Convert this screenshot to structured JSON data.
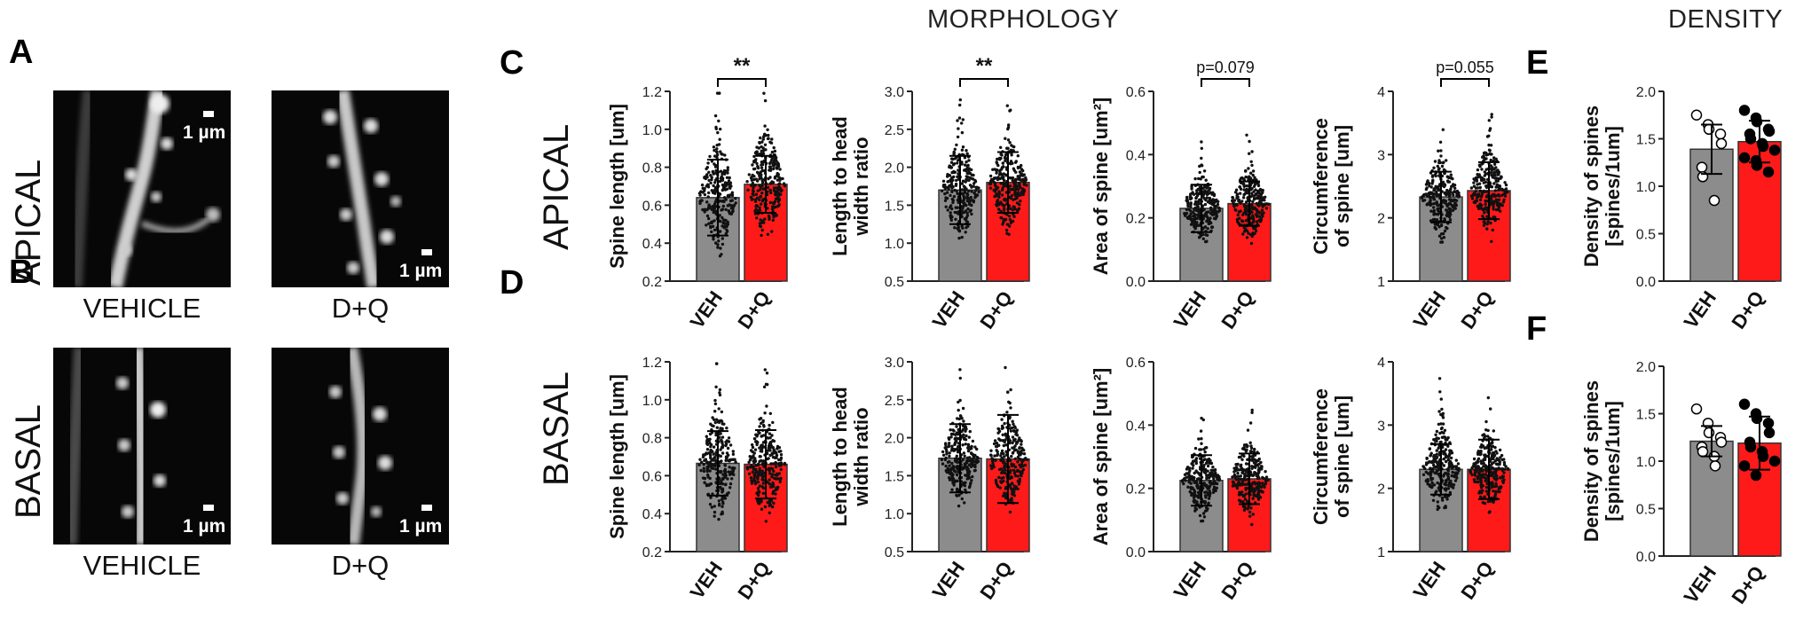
{
  "panel_letters": {
    "A": "A",
    "B": "B",
    "C": "C",
    "D": "D",
    "E": "E",
    "F": "F"
  },
  "section_titles": {
    "morphology": "MORPHOLOGY",
    "density": "DENSITY"
  },
  "row_labels": {
    "left_apical": "APICAL",
    "left_basal": "BASAL",
    "mid_apical": "APICAL",
    "mid_basal": "BASAL"
  },
  "image_captions": {
    "apical_vehicle": "VEHICLE",
    "apical_dq": "D+Q",
    "basal_vehicle": "VEHICLE",
    "basal_dq": "D+Q"
  },
  "scale_bar_label": "1 µm",
  "colors": {
    "vehicle": "#8c8c8c",
    "dq": "#ff1a1a",
    "points": "#111111",
    "axis": "#222222"
  },
  "chart_data": [
    {
      "id": "C1",
      "type": "bar",
      "panel": "C",
      "categories": [
        "VEH",
        "D+Q"
      ],
      "values": [
        0.64,
        0.71
      ],
      "error": [
        0.2,
        0.15
      ],
      "ylabel": "Spine length [um]",
      "ylim": [
        0.2,
        1.2
      ],
      "yticks": [
        "0.2",
        "0.4",
        "0.6",
        "0.8",
        "1.0",
        "1.2"
      ],
      "annotation": "**",
      "annotation_type": "stars",
      "points": "swarm",
      "point_spread": 0.23
    },
    {
      "id": "C2",
      "type": "bar",
      "panel": "C",
      "categories": [
        "VEH",
        "D+Q"
      ],
      "values": [
        1.7,
        1.8
      ],
      "error": [
        0.45,
        0.4
      ],
      "ylabel": "Length to head|width ratio",
      "ylim": [
        0.5,
        3.0
      ],
      "yticks": [
        "0.5",
        "1.0",
        "1.5",
        "2.0",
        "2.5",
        "3.0"
      ],
      "annotation": "**",
      "annotation_type": "stars",
      "points": "swarm",
      "point_spread": 0.5
    },
    {
      "id": "C3",
      "type": "bar",
      "panel": "C",
      "categories": [
        "VEH",
        "D+Q"
      ],
      "values": [
        0.23,
        0.245
      ],
      "error": [
        0.075,
        0.07
      ],
      "ylabel": "Area of spine [um²]",
      "ylim": [
        0.0,
        0.6
      ],
      "yticks": [
        "0.0",
        "0.2",
        "0.4",
        "0.6"
      ],
      "annotation": "p=0.079",
      "annotation_type": "p",
      "points": "swarm",
      "point_spread": 0.09
    },
    {
      "id": "C4",
      "type": "bar",
      "panel": "C",
      "categories": [
        "VEH",
        "D+Q"
      ],
      "values": [
        2.33,
        2.43
      ],
      "error": [
        0.4,
        0.45
      ],
      "ylabel": "Circumference|of spine [um]",
      "ylim": [
        1,
        4
      ],
      "yticks": [
        "1",
        "2",
        "3",
        "4"
      ],
      "annotation": "p=0.055",
      "annotation_type": "p",
      "points": "swarm",
      "point_spread": 0.5
    },
    {
      "id": "D1",
      "type": "bar",
      "panel": "D",
      "categories": [
        "VEH",
        "D+Q"
      ],
      "values": [
        0.665,
        0.66
      ],
      "error": [
        0.17,
        0.18
      ],
      "ylabel": "Spine length [um]",
      "ylim": [
        0.2,
        1.2
      ],
      "yticks": [
        "0.2",
        "0.4",
        "0.6",
        "0.8",
        "1.0",
        "1.2"
      ],
      "annotation": "",
      "annotation_type": "none",
      "points": "swarm",
      "point_spread": 0.22
    },
    {
      "id": "D2",
      "type": "bar",
      "panel": "D",
      "categories": [
        "VEH",
        "D+Q"
      ],
      "values": [
        1.73,
        1.72
      ],
      "error": [
        0.45,
        0.58
      ],
      "ylabel": "Length to head|width ratio",
      "ylim": [
        0.5,
        3.0
      ],
      "yticks": [
        "0.5",
        "1.0",
        "1.5",
        "2.0",
        "2.5",
        "3.0"
      ],
      "annotation": "",
      "annotation_type": "none",
      "points": "swarm",
      "point_spread": 0.5
    },
    {
      "id": "D3",
      "type": "bar",
      "panel": "D",
      "categories": [
        "VEH",
        "D+Q"
      ],
      "values": [
        0.225,
        0.23
      ],
      "error": [
        0.08,
        0.08
      ],
      "ylabel": "Area of spine [um²]",
      "ylim": [
        0.0,
        0.6
      ],
      "yticks": [
        "0.0",
        "0.2",
        "0.4",
        "0.6"
      ],
      "annotation": "",
      "annotation_type": "none",
      "points": "swarm",
      "point_spread": 0.09
    },
    {
      "id": "D4",
      "type": "bar",
      "panel": "D",
      "categories": [
        "VEH",
        "D+Q"
      ],
      "values": [
        2.3,
        2.3
      ],
      "error": [
        0.4,
        0.47
      ],
      "ylabel": "Circumference|of spine [um]",
      "ylim": [
        1,
        4
      ],
      "yticks": [
        "1",
        "2",
        "3",
        "4"
      ],
      "annotation": "",
      "annotation_type": "none",
      "points": "swarm",
      "point_spread": 0.5
    },
    {
      "id": "E",
      "type": "bar",
      "panel": "E",
      "categories": [
        "VEH",
        "D+Q"
      ],
      "values": [
        1.39,
        1.47
      ],
      "error": [
        0.26,
        0.22
      ],
      "ylabel": "Density of spines|[spines/1um]",
      "ylim": [
        0.0,
        2.0
      ],
      "yticks": [
        "0.0",
        "0.5",
        "1.0",
        "1.5",
        "2.0"
      ],
      "annotation": "",
      "annotation_type": "none",
      "points": "individual",
      "individual": [
        [
          1.75,
          1.65,
          1.6,
          1.55,
          1.45,
          1.2,
          1.1,
          0.85
        ],
        [
          1.8,
          1.72,
          1.68,
          1.6,
          1.58,
          1.55,
          1.5,
          1.45,
          1.42,
          1.38,
          1.3,
          1.27,
          1.22,
          1.15
        ]
      ]
    },
    {
      "id": "F",
      "type": "bar",
      "panel": "F",
      "categories": [
        "VEH",
        "D+Q"
      ],
      "values": [
        1.21,
        1.19
      ],
      "error": [
        0.16,
        0.28
      ],
      "ylabel": "Density of spines|[spines/1um]",
      "ylim": [
        0.0,
        2.0
      ],
      "yticks": [
        "0.0",
        "0.5",
        "1.0",
        "1.5",
        "2.0"
      ],
      "annotation": "",
      "annotation_type": "none",
      "points": "individual",
      "individual": [
        [
          1.55,
          1.4,
          1.3,
          1.25,
          1.2,
          1.15,
          1.1,
          1.05,
          0.95
        ],
        [
          1.6,
          1.5,
          1.45,
          1.4,
          1.3,
          1.2,
          1.15,
          1.1,
          1.05,
          1.0,
          0.95,
          0.85
        ]
      ]
    }
  ]
}
